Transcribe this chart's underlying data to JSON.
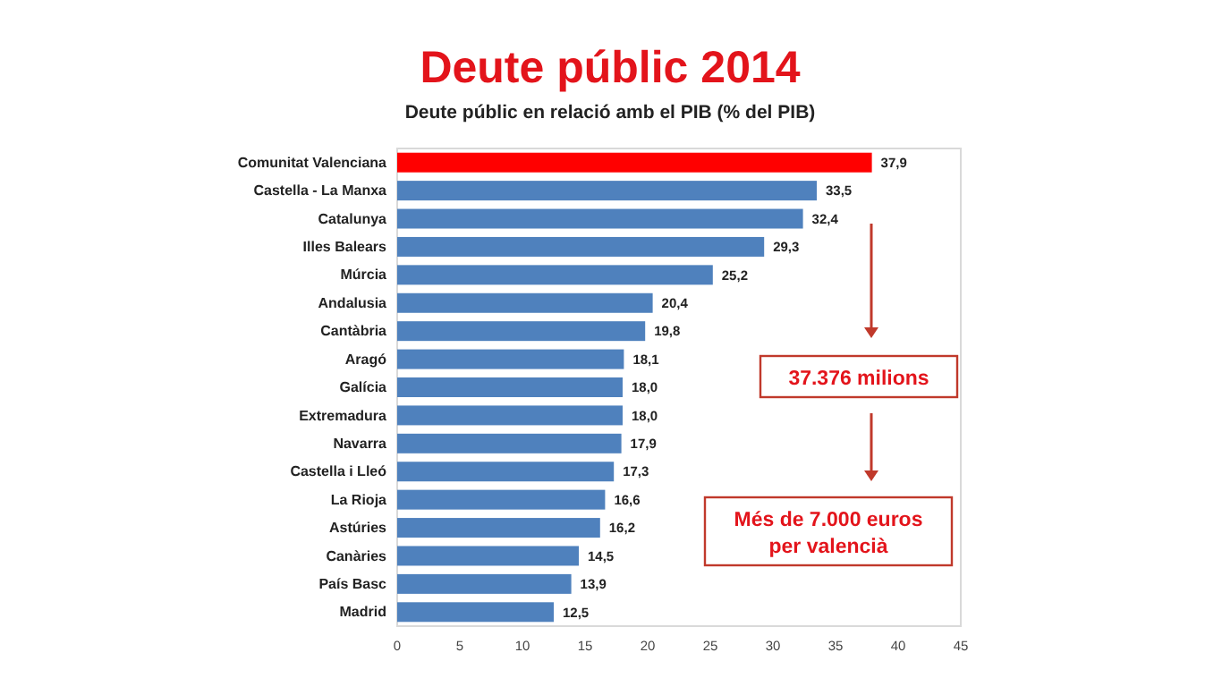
{
  "chart_data": {
    "type": "bar",
    "orientation": "horizontal",
    "title": "Deute públic 2014",
    "subtitle": "Deute públic en relació amb el PIB (% del PIB)",
    "categories": [
      "Comunitat Valenciana",
      "Castella - La Manxa",
      "Catalunya",
      "Illes Balears",
      "Múrcia",
      "Andalusia",
      "Cantàbria",
      "Aragó",
      "Galícia",
      "Extremadura",
      "Navarra",
      "Castella i Lleó",
      "La Rioja",
      "Astúries",
      "Canàries",
      "País Basc",
      "Madrid"
    ],
    "values": [
      37.9,
      33.5,
      32.4,
      29.3,
      25.2,
      20.4,
      19.8,
      18.1,
      18.0,
      18.0,
      17.9,
      17.3,
      16.6,
      16.2,
      14.5,
      13.9,
      12.5
    ],
    "value_labels": [
      "37,9",
      "33,5",
      "32,4",
      "29,3",
      "25,2",
      "20,4",
      "19,8",
      "18,1",
      "18,0",
      "18,0",
      "17,9",
      "17,3",
      "16,6",
      "16,2",
      "14,5",
      "13,9",
      "12,5"
    ],
    "colors": [
      "#ff0000",
      "#4f81bd",
      "#4f81bd",
      "#4f81bd",
      "#4f81bd",
      "#4f81bd",
      "#4f81bd",
      "#4f81bd",
      "#4f81bd",
      "#4f81bd",
      "#4f81bd",
      "#4f81bd",
      "#4f81bd",
      "#4f81bd",
      "#4f81bd",
      "#4f81bd",
      "#4f81bd"
    ],
    "xlim": [
      0,
      45
    ],
    "xticks": [
      0,
      5,
      10,
      15,
      20,
      25,
      30,
      35,
      40,
      45
    ],
    "grid": false,
    "annotations": [
      "37.376 milions",
      "Més de 7.000 euros\nper valencià"
    ]
  }
}
